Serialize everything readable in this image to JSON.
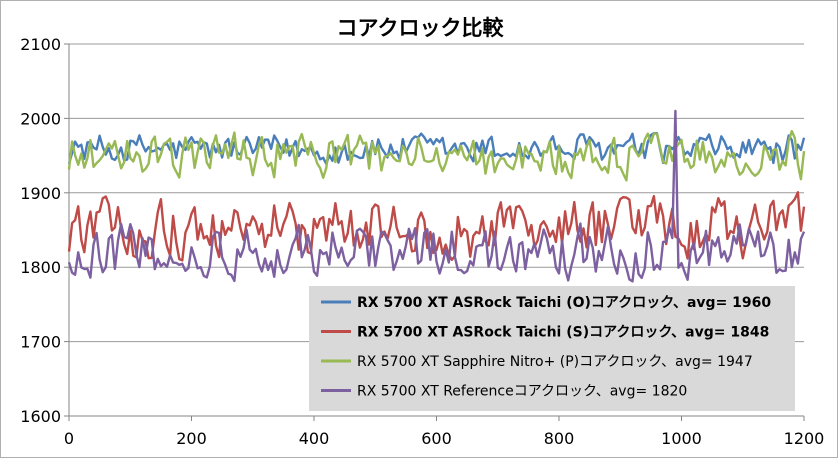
{
  "chart_data": {
    "type": "line",
    "title": "コアクロック比較",
    "xlabel": "",
    "ylabel": "",
    "xlim": [
      0,
      1200
    ],
    "ylim": [
      1600,
      2100
    ],
    "x_ticks": [
      0,
      200,
      400,
      600,
      800,
      1000,
      1200
    ],
    "y_ticks": [
      1600,
      1700,
      1800,
      1900,
      2000,
      2100
    ],
    "grid": true,
    "legend_position": "bottom-right",
    "series": [
      {
        "name": "RX 5700 XT ASRock Taichi (O)コアクロック、avg= 1960",
        "color": "#4a7ebb",
        "bold": true,
        "avg": 1960,
        "range": [
          1930,
          1985
        ],
        "points": 240
      },
      {
        "name": "RX 5700 XT ASRock Taichi (S)コアクロック、avg= 1848",
        "color": "#be4b48",
        "bold": true,
        "avg": 1848,
        "range": [
          1800,
          1905
        ],
        "points": 240
      },
      {
        "name": "RX 5700 XT Sapphire Nitro+ (P)コアクロック、avg= 1947",
        "color": "#98b954",
        "bold": false,
        "avg": 1947,
        "range": [
          1910,
          1990
        ],
        "points": 240
      },
      {
        "name": "RX 5700 XT Referenceコアクロック、avg= 1820",
        "color": "#7d60a0",
        "bold": false,
        "avg": 1820,
        "range": [
          1775,
          1870
        ],
        "spike": {
          "x": 990,
          "y": 2010
        },
        "points": 240
      }
    ]
  }
}
